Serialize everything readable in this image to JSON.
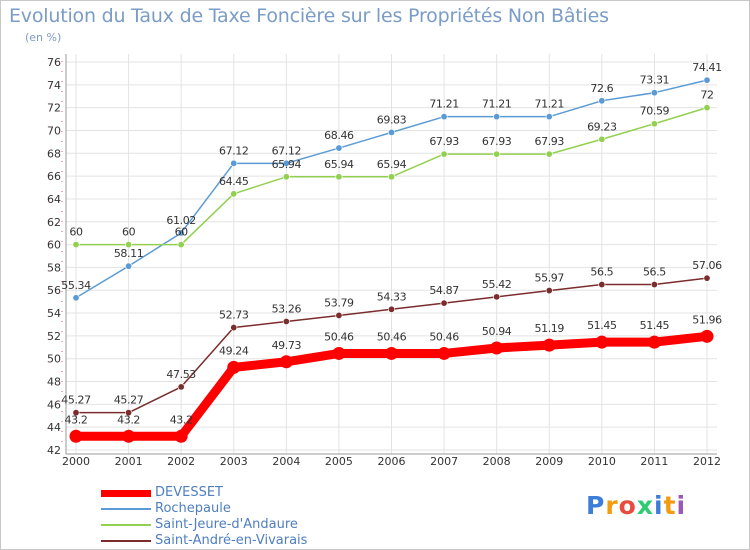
{
  "header": {
    "title": "Evolution du Taux de Taxe Foncière sur les Propriétés Non Bâties",
    "subtitle": "(en %)"
  },
  "chart_data": {
    "type": "line",
    "title": "Evolution du Taux de Taxe Foncière sur les Propriétés Non Bâties",
    "ylabel": "(en %)",
    "xlabel": "",
    "ylim": [
      42,
      76
    ],
    "yticks": [
      42,
      44,
      46,
      48,
      50,
      52,
      54,
      56,
      58,
      60,
      62,
      64,
      66,
      68,
      70,
      72,
      74,
      76
    ],
    "categories": [
      "2000",
      "2001",
      "2002",
      "2003",
      "2004",
      "2005",
      "2006",
      "2007",
      "2008",
      "2009",
      "2010",
      "2011",
      "2012"
    ],
    "grid": true,
    "legend_position": "bottom-left",
    "series": [
      {
        "name": "DEVESSET",
        "color": "#ff0000",
        "values": [
          43.2,
          43.2,
          43.2,
          49.24,
          49.73,
          50.46,
          50.46,
          50.46,
          50.94,
          51.19,
          51.45,
          51.45,
          51.96
        ],
        "labels": [
          "43.2",
          "43.2",
          "43.2",
          "49.24",
          "49.73",
          "50.46",
          "50.46",
          "50.46",
          "50.94",
          "51.19",
          "51.45",
          "51.45",
          "51.96"
        ]
      },
      {
        "name": "Rochepaule",
        "color": "#5b9bd5",
        "values": [
          55.34,
          58.11,
          61.02,
          67.12,
          67.12,
          68.46,
          69.83,
          71.21,
          71.21,
          71.21,
          72.6,
          73.31,
          74.41
        ],
        "labels": [
          "55.34",
          "58.11",
          "61.02",
          "67.12",
          "67.12",
          "68.46",
          "69.83",
          "71.21",
          "71.21",
          "71.21",
          "72.6",
          "73.31",
          "74.41"
        ]
      },
      {
        "name": "Saint-Jeure-d'Andaure",
        "color": "#92d050",
        "values": [
          60,
          60,
          60,
          64.45,
          65.94,
          65.94,
          65.94,
          67.93,
          67.93,
          67.93,
          69.23,
          70.59,
          72
        ],
        "labels": [
          "60",
          "60",
          "60",
          "64.45",
          "65.94",
          "65.94",
          "65.94",
          "67.93",
          "67.93",
          "67.93",
          "69.23",
          "70.59",
          "72"
        ]
      },
      {
        "name": "Saint-André-en-Vivarais",
        "color": "#7b2c2c",
        "values": [
          45.27,
          45.27,
          47.53,
          52.73,
          53.26,
          53.79,
          54.33,
          54.87,
          55.42,
          55.97,
          56.5,
          56.5,
          57.06
        ],
        "labels": [
          "45.27",
          "45.27",
          "47.53",
          "52.73",
          "53.26",
          "53.79",
          "54.33",
          "54.87",
          "55.42",
          "55.97",
          "56.5",
          "56.5",
          "57.06"
        ]
      }
    ]
  },
  "logo": {
    "letters": [
      "P",
      "r",
      "o",
      "x",
      "i",
      "t",
      "i"
    ],
    "colors": [
      "#3b7dd8",
      "#f39c12",
      "#e74c3c",
      "#2ecc71",
      "#3b7dd8",
      "#f39c12",
      "#9b59b6"
    ]
  }
}
